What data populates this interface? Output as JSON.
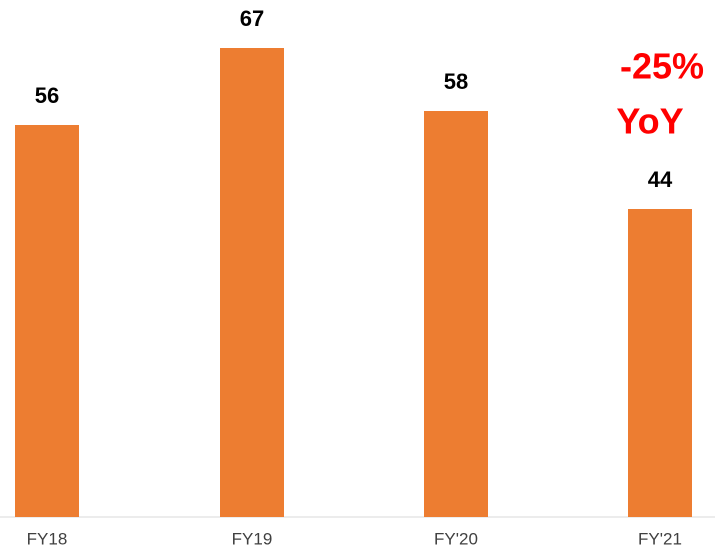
{
  "chart_data": {
    "type": "bar",
    "categories": [
      "FY18",
      "FY19",
      "FY'20",
      "FY'21"
    ],
    "values": [
      56,
      67,
      58,
      44
    ],
    "color": "#ed7d31",
    "annotations": [
      "-25%",
      "YoY"
    ],
    "annotation_color": "#ff0000"
  }
}
